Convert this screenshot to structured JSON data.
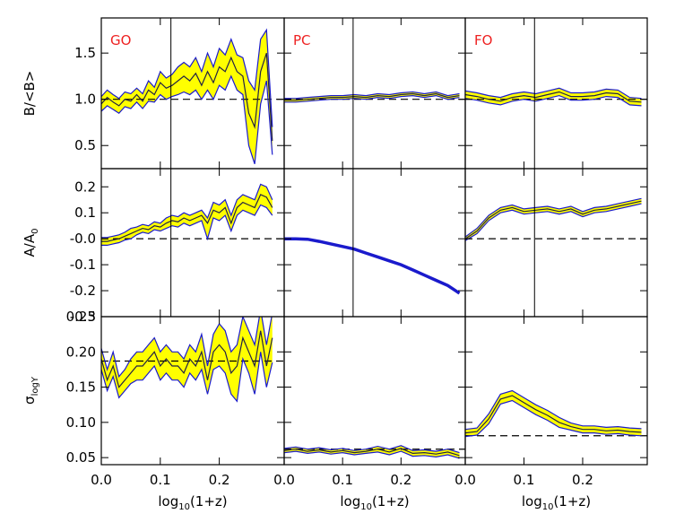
{
  "chart_data": {
    "type": "line",
    "layout": "3x3 grid of panels, shared x axis per column, shared y axis per row",
    "xlabel_text": "log",
    "xlabel_sub": "10",
    "xlabel_suffix": "(1+z)",
    "xlim": [
      0.0,
      0.31
    ],
    "xticks": [
      {
        "value": 0.0,
        "label": "0.0"
      },
      {
        "value": 0.1,
        "label": "0.1"
      },
      {
        "value": 0.2,
        "label": "0.2"
      }
    ],
    "vline_x": 0.118,
    "band_fill": "#ffff00",
    "line_color": "#1a1acc",
    "label_color": "#ee2222",
    "rows": [
      {
        "ylabel_text": "B/<B>",
        "ylabel_sub": "",
        "ylim": [
          0.25,
          1.88
        ],
        "yticks": [
          {
            "value": 0.5,
            "label": "0.5"
          },
          {
            "value": 1.0,
            "label": "1.0"
          },
          {
            "value": 1.5,
            "label": "1.5"
          }
        ],
        "refline": 1.0
      },
      {
        "ylabel_text": "A/A",
        "ylabel_sub": "0",
        "ylim": [
          -0.3,
          0.27
        ],
        "yticks": [
          {
            "value": -0.3,
            "label": "-0.3"
          },
          {
            "value": -0.2,
            "label": "-0.2"
          },
          {
            "value": -0.1,
            "label": "-0.1"
          },
          {
            "value": 0.0,
            "label": "-0.0"
          },
          {
            "value": 0.1,
            "label": "0.1"
          },
          {
            "value": 0.2,
            "label": "0.2"
          }
        ],
        "refline": 0.0
      },
      {
        "ylabel_text": "σ",
        "ylabel_sub": "logY",
        "ylim": [
          0.04,
          0.25
        ],
        "yticks": [
          {
            "value": 0.05,
            "label": "0.05"
          },
          {
            "value": 0.1,
            "label": "0.10"
          },
          {
            "value": 0.15,
            "label": "0.15"
          },
          {
            "value": 0.2,
            "label": "0.20"
          },
          {
            "value": 0.25,
            "label": "0.25"
          }
        ],
        "refline": null
      }
    ],
    "columns": [
      "GO",
      "PC",
      "FO"
    ],
    "panels": [
      {
        "row": 0,
        "col": 0,
        "label": "GO",
        "vline": true,
        "refline": 1.0,
        "x": [
          0.0,
          0.01,
          0.02,
          0.03,
          0.04,
          0.05,
          0.06,
          0.07,
          0.08,
          0.09,
          0.1,
          0.11,
          0.12,
          0.13,
          0.14,
          0.15,
          0.16,
          0.17,
          0.18,
          0.19,
          0.2,
          0.21,
          0.22,
          0.23,
          0.24,
          0.25,
          0.26,
          0.27,
          0.28,
          0.29
        ],
        "mid": [
          0.95,
          1.02,
          0.97,
          0.93,
          1.0,
          0.98,
          1.05,
          0.98,
          1.1,
          1.05,
          1.18,
          1.12,
          1.15,
          1.2,
          1.25,
          1.2,
          1.28,
          1.15,
          1.3,
          1.18,
          1.35,
          1.3,
          1.45,
          1.3,
          1.25,
          0.85,
          0.7,
          1.3,
          1.5,
          0.55
        ],
        "upper": [
          1.03,
          1.1,
          1.05,
          1.01,
          1.08,
          1.06,
          1.12,
          1.06,
          1.2,
          1.13,
          1.3,
          1.23,
          1.27,
          1.35,
          1.4,
          1.35,
          1.45,
          1.3,
          1.5,
          1.35,
          1.55,
          1.48,
          1.65,
          1.48,
          1.45,
          1.2,
          1.1,
          1.65,
          1.75,
          0.7
        ],
        "lower": [
          0.87,
          0.93,
          0.89,
          0.85,
          0.92,
          0.9,
          0.97,
          0.9,
          0.98,
          0.97,
          1.05,
          1.0,
          1.03,
          1.05,
          1.08,
          1.05,
          1.1,
          1.0,
          1.1,
          1.0,
          1.15,
          1.1,
          1.25,
          1.1,
          1.05,
          0.5,
          0.3,
          0.95,
          1.2,
          0.4
        ]
      },
      {
        "row": 0,
        "col": 1,
        "label": "PC",
        "vline": true,
        "refline": 1.0,
        "x": [
          0.0,
          0.02,
          0.04,
          0.06,
          0.08,
          0.1,
          0.12,
          0.14,
          0.16,
          0.18,
          0.2,
          0.22,
          0.24,
          0.26,
          0.28,
          0.3
        ],
        "mid": [
          0.99,
          0.99,
          1.0,
          1.01,
          1.02,
          1.02,
          1.03,
          1.02,
          1.04,
          1.03,
          1.05,
          1.06,
          1.04,
          1.06,
          1.02,
          1.04
        ],
        "upper": [
          1.01,
          1.01,
          1.02,
          1.03,
          1.04,
          1.04,
          1.05,
          1.04,
          1.06,
          1.05,
          1.07,
          1.08,
          1.06,
          1.08,
          1.04,
          1.06
        ],
        "lower": [
          0.97,
          0.97,
          0.98,
          0.99,
          1.0,
          1.0,
          1.01,
          1.0,
          1.02,
          1.01,
          1.03,
          1.04,
          1.02,
          1.04,
          1.0,
          1.02
        ]
      },
      {
        "row": 0,
        "col": 2,
        "label": "FO",
        "vline": true,
        "refline": 1.0,
        "x": [
          0.0,
          0.02,
          0.04,
          0.06,
          0.08,
          0.1,
          0.12,
          0.14,
          0.16,
          0.18,
          0.2,
          0.22,
          0.24,
          0.26,
          0.28,
          0.3
        ],
        "mid": [
          1.05,
          1.03,
          1.0,
          0.98,
          1.02,
          1.04,
          1.02,
          1.05,
          1.08,
          1.03,
          1.03,
          1.04,
          1.07,
          1.06,
          0.98,
          0.97
        ],
        "upper": [
          1.09,
          1.07,
          1.04,
          1.02,
          1.06,
          1.08,
          1.06,
          1.09,
          1.12,
          1.07,
          1.07,
          1.08,
          1.11,
          1.1,
          1.02,
          1.01
        ],
        "lower": [
          1.01,
          0.99,
          0.96,
          0.94,
          0.98,
          1.0,
          0.98,
          1.01,
          1.04,
          0.99,
          0.99,
          1.0,
          1.03,
          1.02,
          0.94,
          0.93
        ]
      },
      {
        "row": 1,
        "col": 0,
        "label": "",
        "vline": true,
        "refline": 0.0,
        "x": [
          0.0,
          0.01,
          0.02,
          0.03,
          0.04,
          0.05,
          0.06,
          0.07,
          0.08,
          0.09,
          0.1,
          0.11,
          0.12,
          0.13,
          0.14,
          0.15,
          0.16,
          0.17,
          0.18,
          0.19,
          0.2,
          0.21,
          0.22,
          0.23,
          0.24,
          0.25,
          0.26,
          0.27,
          0.28,
          0.29
        ],
        "mid": [
          -0.01,
          -0.01,
          -0.005,
          0.0,
          0.01,
          0.02,
          0.03,
          0.04,
          0.035,
          0.05,
          0.045,
          0.06,
          0.07,
          0.065,
          0.08,
          0.07,
          0.08,
          0.09,
          0.06,
          0.11,
          0.1,
          0.12,
          0.06,
          0.12,
          0.14,
          0.13,
          0.12,
          0.17,
          0.16,
          0.12
        ],
        "upper": [
          0.005,
          0.005,
          0.01,
          0.015,
          0.025,
          0.04,
          0.045,
          0.055,
          0.05,
          0.065,
          0.06,
          0.08,
          0.09,
          0.085,
          0.1,
          0.09,
          0.1,
          0.11,
          0.08,
          0.14,
          0.13,
          0.15,
          0.09,
          0.15,
          0.17,
          0.16,
          0.15,
          0.21,
          0.2,
          0.15
        ],
        "lower": [
          -0.025,
          -0.025,
          -0.02,
          -0.015,
          -0.005,
          0.0,
          0.015,
          0.025,
          0.02,
          0.035,
          0.03,
          0.04,
          0.05,
          0.045,
          0.06,
          0.05,
          0.06,
          0.07,
          0.0,
          0.08,
          0.07,
          0.09,
          0.03,
          0.09,
          0.11,
          0.1,
          0.09,
          0.13,
          0.12,
          0.09
        ]
      },
      {
        "row": 1,
        "col": 1,
        "label": "",
        "vline": true,
        "refline": null,
        "x": [
          0.0,
          0.02,
          0.04,
          0.06,
          0.08,
          0.1,
          0.12,
          0.14,
          0.16,
          0.18,
          0.2,
          0.22,
          0.24,
          0.26,
          0.28,
          0.3
        ],
        "mid": [
          0.0,
          0.0,
          -0.002,
          -0.01,
          -0.02,
          -0.03,
          -0.04,
          -0.055,
          -0.07,
          -0.085,
          -0.1,
          -0.12,
          -0.14,
          -0.16,
          -0.18,
          -0.21
        ],
        "upper": [
          0.003,
          0.003,
          0.001,
          -0.007,
          -0.017,
          -0.027,
          -0.037,
          -0.052,
          -0.067,
          -0.082,
          -0.097,
          -0.117,
          -0.137,
          -0.157,
          -0.177,
          -0.207
        ],
        "lower": [
          -0.003,
          -0.003,
          -0.005,
          -0.013,
          -0.023,
          -0.033,
          -0.043,
          -0.058,
          -0.073,
          -0.088,
          -0.103,
          -0.123,
          -0.143,
          -0.163,
          -0.183,
          -0.213
        ]
      },
      {
        "row": 1,
        "col": 2,
        "label": "",
        "vline": true,
        "refline": 0.0,
        "x": [
          0.0,
          0.02,
          0.04,
          0.06,
          0.08,
          0.1,
          0.12,
          0.14,
          0.16,
          0.18,
          0.2,
          0.22,
          0.24,
          0.26,
          0.28,
          0.3
        ],
        "mid": [
          0.0,
          0.03,
          0.08,
          0.11,
          0.12,
          0.105,
          0.11,
          0.115,
          0.105,
          0.115,
          0.095,
          0.11,
          0.115,
          0.125,
          0.135,
          0.145
        ],
        "upper": [
          0.007,
          0.04,
          0.09,
          0.12,
          0.13,
          0.115,
          0.12,
          0.125,
          0.115,
          0.125,
          0.105,
          0.12,
          0.125,
          0.135,
          0.145,
          0.155
        ],
        "lower": [
          -0.007,
          0.02,
          0.07,
          0.1,
          0.11,
          0.095,
          0.1,
          0.105,
          0.095,
          0.105,
          0.085,
          0.1,
          0.105,
          0.115,
          0.125,
          0.135
        ]
      },
      {
        "row": 2,
        "col": 0,
        "label": "",
        "vline": false,
        "refline": 0.187,
        "x": [
          0.0,
          0.01,
          0.02,
          0.03,
          0.04,
          0.05,
          0.06,
          0.07,
          0.08,
          0.09,
          0.1,
          0.11,
          0.12,
          0.13,
          0.14,
          0.15,
          0.16,
          0.17,
          0.18,
          0.19,
          0.2,
          0.21,
          0.22,
          0.23,
          0.24,
          0.25,
          0.26,
          0.27,
          0.28,
          0.29
        ],
        "mid": [
          0.19,
          0.16,
          0.18,
          0.15,
          0.16,
          0.17,
          0.18,
          0.18,
          0.19,
          0.2,
          0.18,
          0.19,
          0.18,
          0.18,
          0.17,
          0.19,
          0.18,
          0.2,
          0.16,
          0.2,
          0.21,
          0.2,
          0.17,
          0.18,
          0.22,
          0.2,
          0.18,
          0.23,
          0.18,
          0.22
        ],
        "upper": [
          0.205,
          0.175,
          0.2,
          0.165,
          0.175,
          0.19,
          0.2,
          0.2,
          0.21,
          0.22,
          0.2,
          0.21,
          0.2,
          0.2,
          0.19,
          0.21,
          0.2,
          0.225,
          0.18,
          0.225,
          0.24,
          0.23,
          0.2,
          0.21,
          0.25,
          0.23,
          0.21,
          0.26,
          0.21,
          0.255
        ],
        "lower": [
          0.175,
          0.145,
          0.165,
          0.135,
          0.145,
          0.155,
          0.16,
          0.16,
          0.17,
          0.18,
          0.16,
          0.17,
          0.16,
          0.16,
          0.15,
          0.17,
          0.16,
          0.175,
          0.14,
          0.175,
          0.18,
          0.17,
          0.14,
          0.13,
          0.19,
          0.17,
          0.14,
          0.2,
          0.15,
          0.185
        ]
      },
      {
        "row": 2,
        "col": 1,
        "label": "",
        "vline": false,
        "refline": 0.062,
        "x": [
          0.0,
          0.02,
          0.04,
          0.06,
          0.08,
          0.1,
          0.12,
          0.14,
          0.16,
          0.18,
          0.2,
          0.22,
          0.24,
          0.26,
          0.28,
          0.3
        ],
        "mid": [
          0.06,
          0.062,
          0.059,
          0.061,
          0.058,
          0.06,
          0.057,
          0.059,
          0.062,
          0.058,
          0.063,
          0.056,
          0.057,
          0.055,
          0.058,
          0.053
        ],
        "upper": [
          0.063,
          0.065,
          0.062,
          0.064,
          0.061,
          0.063,
          0.06,
          0.062,
          0.066,
          0.062,
          0.067,
          0.06,
          0.061,
          0.059,
          0.062,
          0.057
        ],
        "lower": [
          0.057,
          0.059,
          0.056,
          0.058,
          0.055,
          0.057,
          0.054,
          0.056,
          0.058,
          0.054,
          0.059,
          0.052,
          0.053,
          0.051,
          0.054,
          0.049
        ]
      },
      {
        "row": 2,
        "col": 2,
        "label": "",
        "vline": false,
        "refline": 0.081,
        "x": [
          0.0,
          0.02,
          0.04,
          0.06,
          0.08,
          0.1,
          0.12,
          0.14,
          0.16,
          0.18,
          0.2,
          0.22,
          0.24,
          0.26,
          0.28,
          0.3
        ],
        "mid": [
          0.085,
          0.087,
          0.105,
          0.133,
          0.138,
          0.128,
          0.118,
          0.11,
          0.1,
          0.094,
          0.09,
          0.09,
          0.088,
          0.089,
          0.087,
          0.086
        ],
        "upper": [
          0.09,
          0.092,
          0.112,
          0.14,
          0.145,
          0.135,
          0.125,
          0.117,
          0.107,
          0.099,
          0.095,
          0.095,
          0.093,
          0.094,
          0.092,
          0.091
        ],
        "lower": [
          0.08,
          0.082,
          0.098,
          0.126,
          0.131,
          0.121,
          0.111,
          0.103,
          0.093,
          0.089,
          0.085,
          0.085,
          0.083,
          0.084,
          0.082,
          0.081
        ]
      }
    ]
  }
}
